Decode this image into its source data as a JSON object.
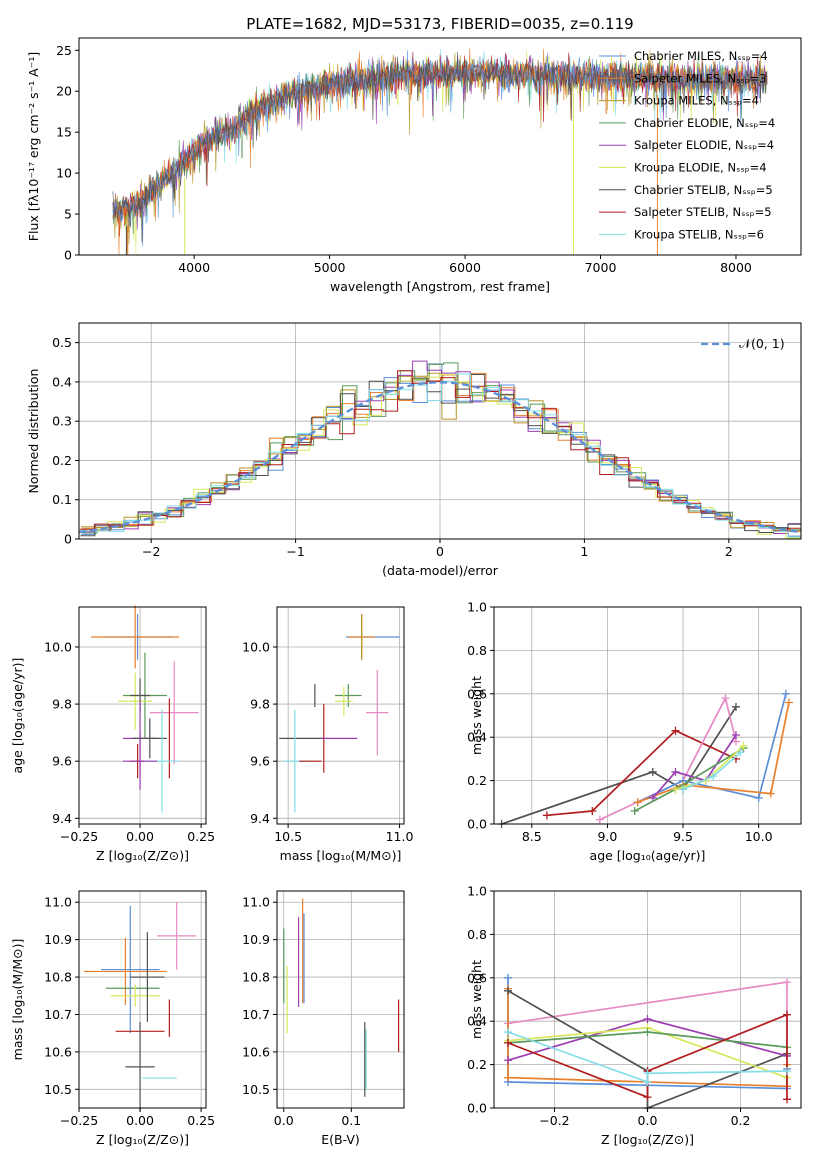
{
  "figure": {
    "title": "PLATE=1682, MJD=53173, FIBERID=0035, z=0.119"
  },
  "colors": {
    "Chabrier MILES": "#5b8fd9",
    "Salpeter MILES": "#e8802e",
    "Kroupa MILES": "#b8952a",
    "Chabrier ELODIE": "#5a9a5a",
    "Salpeter ELODIE": "#9b3fb0",
    "Kroupa ELODIE": "#d8e85a",
    "Chabrier STELIB": "#505050",
    "Salpeter STELIB": "#b21e1e",
    "Kroupa STELIB": "#82dde8",
    "extra": "#e88bc4"
  },
  "chart_data": [
    {
      "id": "spectrum",
      "type": "line",
      "title": "PLATE=1682, MJD=53173, FIBERID=0035, z=0.119",
      "xlabel": "wavelength [Angstrom, rest frame]",
      "ylabel": "Flux [fλ10⁻¹⁷ erg cm⁻² s⁻¹ A⁻¹]",
      "xlim": [
        3150,
        8480
      ],
      "ylim": [
        0,
        26.5
      ],
      "xticks": [
        4000,
        5000,
        6000,
        7000,
        8000
      ],
      "yticks": [
        0,
        5,
        10,
        15,
        20,
        25
      ],
      "grid": false,
      "legend_position": "right",
      "series": [
        {
          "name": "Chabrier MILES, N_SSP=4"
        },
        {
          "name": "Salpeter MILES, N_SSP=3"
        },
        {
          "name": "Kroupa MILES, N_SSP=4"
        },
        {
          "name": "Chabrier ELODIE, N_SSP=4"
        },
        {
          "name": "Salpeter ELODIE, N_SSP=4"
        },
        {
          "name": "Kroupa ELODIE, N_SSP=4"
        },
        {
          "name": "Chabrier STELIB, N_SSP=5"
        },
        {
          "name": "Salpeter STELIB, N_SSP=5"
        },
        {
          "name": "Kroupa STELIB, N_SSP=6"
        }
      ],
      "continuum": {
        "x": [
          3400,
          3500,
          3600,
          3700,
          3800,
          3900,
          4000,
          4100,
          4200,
          4300,
          4400,
          4500,
          4700,
          5000,
          5500,
          6000,
          6500,
          7000,
          7500,
          8000,
          8230
        ],
        "y": [
          5.5,
          5.5,
          6.5,
          8.0,
          9.5,
          11.0,
          12.5,
          14.0,
          15.0,
          15.5,
          17.0,
          18.0,
          19.5,
          21.0,
          22.0,
          22.3,
          22.0,
          21.8,
          21.5,
          21.5,
          21.5
        ]
      }
    },
    {
      "id": "residuals",
      "type": "line",
      "xlabel": "(data-model)/error",
      "ylabel": "Normed distribution",
      "xlim": [
        -2.5,
        2.5
      ],
      "ylim": [
        0,
        0.55
      ],
      "xticks": [
        -2,
        -1,
        0,
        1,
        2
      ],
      "yticks": [
        0.0,
        0.1,
        0.2,
        0.3,
        0.4,
        0.5
      ],
      "grid": true,
      "legend_position": "top-right",
      "legend": [
        "𝒩(0, 1)"
      ],
      "bin_width": 0.1
    },
    {
      "id": "age-vs-Z",
      "type": "scatter",
      "xlabel": "Z [log₁₀(Z/Z⊙)]",
      "ylabel": "age  [log₁₀(age/yr)]",
      "xlim": [
        -0.25,
        0.27
      ],
      "ylim": [
        9.38,
        10.14
      ],
      "xticks": [
        -0.25,
        0.0,
        0.25
      ],
      "xticklabels": [
        "−0.25",
        "0.00",
        "0.25"
      ],
      "yticks": [
        9.4,
        9.6,
        9.8,
        10.0
      ],
      "yticklabels": [
        "9.4",
        "9.6",
        "9.8",
        "10.0"
      ],
      "grid": true,
      "points": [
        {
          "color": "Chabrier MILES",
          "x": -0.01,
          "xerr": 0.14,
          "y": 10.035,
          "yerr": 0.08
        },
        {
          "color": "Salpeter MILES",
          "x": -0.02,
          "xerr": 0.18,
          "y": 10.035,
          "yerr": 0.11
        },
        {
          "color": "Chabrier ELODIE",
          "x": 0.02,
          "xerr": 0.09,
          "y": 9.83,
          "yerr": 0.15
        },
        {
          "color": "Kroupa ELODIE",
          "x": -0.02,
          "xerr": 0.07,
          "y": 9.81,
          "yerr": 0.1
        },
        {
          "color": "Chabrier STELIB",
          "x": 0.0,
          "xerr": 0.04,
          "y": 9.83,
          "yerr": 0.06
        },
        {
          "color": "extra",
          "x": 0.14,
          "xerr": 0.1,
          "y": 9.77,
          "yerr": 0.18
        },
        {
          "color": "Salpeter ELODIE",
          "x": 0.0,
          "xerr": 0.07,
          "y": 9.68,
          "yerr": 0.13
        },
        {
          "color": "Chabrier STELIB",
          "x": 0.04,
          "xerr": 0.07,
          "y": 9.68,
          "yerr": 0.07
        },
        {
          "color": "Salpeter STELIB",
          "x": 0.12,
          "xerr": 0.0,
          "y": 9.68,
          "yerr": 0.14
        },
        {
          "color": "Salpeter STELIB",
          "x": -0.01,
          "xerr": 0.03,
          "y": 9.6,
          "yerr": 0.06
        },
        {
          "color": "Kroupa STELIB",
          "x": 0.09,
          "xerr": 0.07,
          "y": 9.6,
          "yerr": 0.18
        },
        {
          "color": "Salpeter ELODIE",
          "x": 0.0,
          "xerr": 0.07,
          "y": 9.6,
          "yerr": 0.1
        }
      ]
    },
    {
      "id": "age-vs-mass",
      "type": "scatter",
      "xlabel": "mass [log₁₀(M/M⊙)]",
      "xlim": [
        10.45,
        11.02
      ],
      "ylim": [
        9.38,
        10.14
      ],
      "xticks": [
        10.5,
        11.0
      ],
      "xticklabels": [
        "10.5",
        "11.0"
      ],
      "yticks": [
        9.4,
        9.6,
        9.8,
        10.0
      ],
      "yticklabels": [
        "9.4",
        "9.6",
        "9.8",
        "10.0"
      ],
      "grid": true,
      "points": [
        {
          "color": "Chabrier MILES",
          "x": 10.88,
          "xerr": 0.12,
          "y": 10.035,
          "yerr": 0.0
        },
        {
          "color": "Salpeter MILES",
          "x": 10.83,
          "xerr": 0.06,
          "y": 10.035,
          "yerr": 0.08
        },
        {
          "color": "Kroupa MILES",
          "x": 10.83,
          "xerr": 0.0,
          "y": 10.035,
          "yerr": 0.08
        },
        {
          "color": "Chabrier STELIB",
          "x": 10.62,
          "xerr": 0.0,
          "y": 9.83,
          "yerr": 0.04
        },
        {
          "color": "Chabrier ELODIE",
          "x": 10.77,
          "xerr": 0.06,
          "y": 9.83,
          "yerr": 0.04
        },
        {
          "color": "Kroupa ELODIE",
          "x": 10.75,
          "xerr": 0.04,
          "y": 9.81,
          "yerr": 0.05
        },
        {
          "color": "extra",
          "x": 10.9,
          "xerr": 0.05,
          "y": 9.77,
          "yerr": 0.15
        },
        {
          "color": "Salpeter STELIB",
          "x": 10.66,
          "xerr": 0.0,
          "y": 9.68,
          "yerr": 0.12
        },
        {
          "color": "Chabrier STELIB",
          "x": 10.56,
          "xerr": 0.1,
          "y": 9.68,
          "yerr": 0.0
        },
        {
          "color": "Salpeter ELODIE",
          "x": 10.73,
          "xerr": 0.08,
          "y": 9.68,
          "yerr": 0.0
        },
        {
          "color": "Kroupa STELIB",
          "x": 10.53,
          "xerr": 0.05,
          "y": 9.6,
          "yerr": 0.18
        },
        {
          "color": "Salpeter STELIB",
          "x": 10.6,
          "xerr": 0.05,
          "y": 9.6,
          "yerr": 0.0
        }
      ]
    },
    {
      "id": "weight-vs-age",
      "type": "line",
      "xlabel": "age  [log₁₀(age/yr)]",
      "ylabel": "mass weight",
      "xlim": [
        8.25,
        10.28
      ],
      "ylim": [
        0,
        1.0
      ],
      "xticks": [
        8.5,
        9.0,
        9.5,
        10.0
      ],
      "xticklabels": [
        "8.5",
        "9.0",
        "9.5",
        "10.0"
      ],
      "yticks": [
        0.0,
        0.2,
        0.4,
        0.6,
        0.8,
        1.0
      ],
      "yticklabels": [
        "0.0",
        "0.2",
        "0.4",
        "0.6",
        "0.8",
        "1.0"
      ],
      "grid": true,
      "series": [
        {
          "color": "Chabrier STELIB",
          "x": [
            8.3,
            9.3,
            9.5,
            9.85
          ],
          "y": [
            0.0,
            0.24,
            0.16,
            0.54
          ]
        },
        {
          "color": "Salpeter STELIB",
          "x": [
            8.6,
            8.9,
            9.45,
            9.85
          ],
          "y": [
            0.04,
            0.06,
            0.43,
            0.3
          ]
        },
        {
          "color": "extra",
          "x": [
            8.95,
            9.5,
            9.78,
            9.85
          ],
          "y": [
            0.02,
            0.2,
            0.58,
            0.38
          ]
        },
        {
          "color": "Chabrier MILES",
          "x": [
            9.2,
            9.5,
            10.0,
            10.18
          ],
          "y": [
            0.1,
            0.2,
            0.12,
            0.6
          ]
        },
        {
          "color": "Salpeter MILES",
          "x": [
            9.2,
            9.5,
            10.08,
            10.2
          ],
          "y": [
            0.1,
            0.18,
            0.14,
            0.56
          ]
        },
        {
          "color": "Salpeter ELODIE",
          "x": [
            9.3,
            9.45,
            9.65,
            9.85
          ],
          "y": [
            0.12,
            0.24,
            0.2,
            0.41
          ]
        },
        {
          "color": "Chabrier ELODIE",
          "x": [
            9.18,
            9.45,
            9.9
          ],
          "y": [
            0.06,
            0.16,
            0.35
          ]
        },
        {
          "color": "Kroupa ELODIE",
          "x": [
            9.45,
            9.65,
            9.9
          ],
          "y": [
            0.16,
            0.2,
            0.36
          ]
        },
        {
          "color": "Kroupa STELIB",
          "x": [
            9.5,
            9.7,
            9.88
          ],
          "y": [
            0.16,
            0.22,
            0.33
          ]
        }
      ]
    },
    {
      "id": "mass-vs-Z",
      "type": "scatter",
      "xlabel": "Z [log₁₀(Z/Z⊙)]",
      "ylabel": "mass [log₁₀(M/M⊙)]",
      "xlim": [
        -0.25,
        0.27
      ],
      "ylim": [
        10.45,
        11.03
      ],
      "xticks": [
        -0.25,
        0.0,
        0.25
      ],
      "xticklabels": [
        "−0.25",
        "0.00",
        "0.25"
      ],
      "yticks": [
        10.5,
        10.6,
        10.7,
        10.8,
        10.9,
        11.0
      ],
      "yticklabels": [
        "10.5",
        "10.6",
        "10.7",
        "10.8",
        "10.9",
        "11.0"
      ],
      "grid": true,
      "points": [
        {
          "color": "extra",
          "x": 0.15,
          "xerr": 0.08,
          "y": 10.91,
          "yerr": 0.09
        },
        {
          "color": "Chabrier MILES",
          "x": -0.04,
          "xerr": 0.12,
          "y": 10.82,
          "yerr": 0.17
        },
        {
          "color": "Salpeter MILES",
          "x": -0.06,
          "xerr": 0.17,
          "y": 10.815,
          "yerr": 0.09
        },
        {
          "color": "Salpeter ELODIE",
          "x": 0.03,
          "xerr": 0.07,
          "y": 10.8,
          "yerr": 0.0
        },
        {
          "color": "Chabrier ELODIE",
          "x": -0.03,
          "xerr": 0.11,
          "y": 10.77,
          "yerr": 0.0
        },
        {
          "color": "Kroupa ELODIE",
          "x": -0.02,
          "xerr": 0.1,
          "y": 10.75,
          "yerr": 0.03
        },
        {
          "color": "Chabrier STELIB",
          "x": 0.03,
          "xerr": 0.07,
          "y": 10.8,
          "yerr": 0.12
        },
        {
          "color": "Salpeter STELIB",
          "x": 0.12,
          "xerr": 0.0,
          "y": 10.69,
          "yerr": 0.05
        },
        {
          "color": "Salpeter STELIB",
          "x": 0.0,
          "xerr": 0.1,
          "y": 10.655,
          "yerr": 0.0
        },
        {
          "color": "Chabrier STELIB",
          "x": 0.0,
          "xerr": 0.06,
          "y": 10.56,
          "yerr": 0.12
        },
        {
          "color": "Kroupa STELIB",
          "x": 0.08,
          "xerr": 0.07,
          "y": 10.53,
          "yerr": 0.0
        }
      ]
    },
    {
      "id": "mass-vs-EBV",
      "type": "scatter",
      "xlabel": "E(B-V)",
      "xlim": [
        -0.01,
        0.178
      ],
      "ylim": [
        10.45,
        11.03
      ],
      "xticks": [
        0.0,
        0.1
      ],
      "xticklabels": [
        "0.0",
        "0.1"
      ],
      "yticks": [
        10.5,
        10.6,
        10.7,
        10.8,
        10.9,
        11.0
      ],
      "yticklabels": [
        "10.5",
        "10.6",
        "10.7",
        "10.8",
        "10.9",
        "11.0"
      ],
      "grid": true,
      "points": [
        {
          "color": "Chabrier ELODIE",
          "x": 0.0,
          "xerr": 0.0,
          "y": 10.83,
          "yerr": 0.1
        },
        {
          "color": "Kroupa ELODIE",
          "x": 0.005,
          "xerr": 0.0,
          "y": 10.74,
          "yerr": 0.09
        },
        {
          "color": "Salpeter ELODIE",
          "x": 0.022,
          "xerr": 0.0,
          "y": 10.84,
          "yerr": 0.12
        },
        {
          "color": "Salpeter MILES",
          "x": 0.028,
          "xerr": 0.0,
          "y": 10.87,
          "yerr": 0.14
        },
        {
          "color": "Chabrier MILES",
          "x": 0.03,
          "xerr": 0.0,
          "y": 10.85,
          "yerr": 0.12
        },
        {
          "color": "Chabrier STELIB",
          "x": 0.12,
          "xerr": 0.0,
          "y": 10.58,
          "yerr": 0.1
        },
        {
          "color": "Kroupa STELIB",
          "x": 0.122,
          "xerr": 0.0,
          "y": 10.58,
          "yerr": 0.08
        },
        {
          "color": "Salpeter STELIB",
          "x": 0.17,
          "xerr": 0.0,
          "y": 10.67,
          "yerr": 0.07
        }
      ]
    },
    {
      "id": "weight-vs-Z",
      "type": "line",
      "xlabel": "Z [log₁₀(Z/Z⊙)]",
      "ylabel": "mass weight",
      "xlim": [
        -0.33,
        0.33
      ],
      "ylim": [
        0,
        1.0
      ],
      "xticks": [
        -0.2,
        0.0,
        0.2
      ],
      "xticklabels": [
        "−0.2",
        "0.0",
        "0.2"
      ],
      "yticks": [
        0.0,
        0.2,
        0.4,
        0.6,
        0.8,
        1.0
      ],
      "yticklabels": [
        "0.0",
        "0.2",
        "0.4",
        "0.6",
        "0.8",
        "1.0"
      ],
      "grid": true,
      "series": [
        {
          "color": "extra",
          "x": [
            -0.3,
            0.3,
            0.3
          ],
          "y": [
            0.39,
            0.58,
            0.24
          ]
        },
        {
          "color": "Chabrier MILES",
          "x": [
            -0.3,
            -0.3,
            0.3,
            0.3
          ],
          "y": [
            0.6,
            0.12,
            0.09,
            0.18
          ]
        },
        {
          "color": "Salpeter MILES",
          "x": [
            -0.3,
            -0.3,
            0.3,
            0.3
          ],
          "y": [
            0.55,
            0.14,
            0.1,
            0.2
          ]
        },
        {
          "color": "Chabrier STELIB",
          "x": [
            -0.3,
            0.0,
            0.0,
            0.3
          ],
          "y": [
            0.54,
            0.17,
            0.0,
            0.25
          ]
        },
        {
          "color": "Salpeter ELODIE",
          "x": [
            -0.3,
            0.0,
            0.3
          ],
          "y": [
            0.22,
            0.41,
            0.24
          ]
        },
        {
          "color": "Kroupa ELODIE",
          "x": [
            -0.3,
            0.0,
            0.3
          ],
          "y": [
            0.31,
            0.37,
            0.14
          ]
        },
        {
          "color": "Chabrier ELODIE",
          "x": [
            -0.3,
            0.0,
            0.3
          ],
          "y": [
            0.3,
            0.35,
            0.28
          ]
        },
        {
          "color": "Salpeter STELIB",
          "x": [
            -0.3,
            0.0,
            0.0,
            0.3,
            0.3
          ],
          "y": [
            0.3,
            0.05,
            0.17,
            0.43,
            0.04
          ]
        },
        {
          "color": "Kroupa STELIB",
          "x": [
            -0.3,
            0.0,
            0.0,
            0.3
          ],
          "y": [
            0.35,
            0.12,
            0.16,
            0.17
          ]
        }
      ]
    }
  ]
}
